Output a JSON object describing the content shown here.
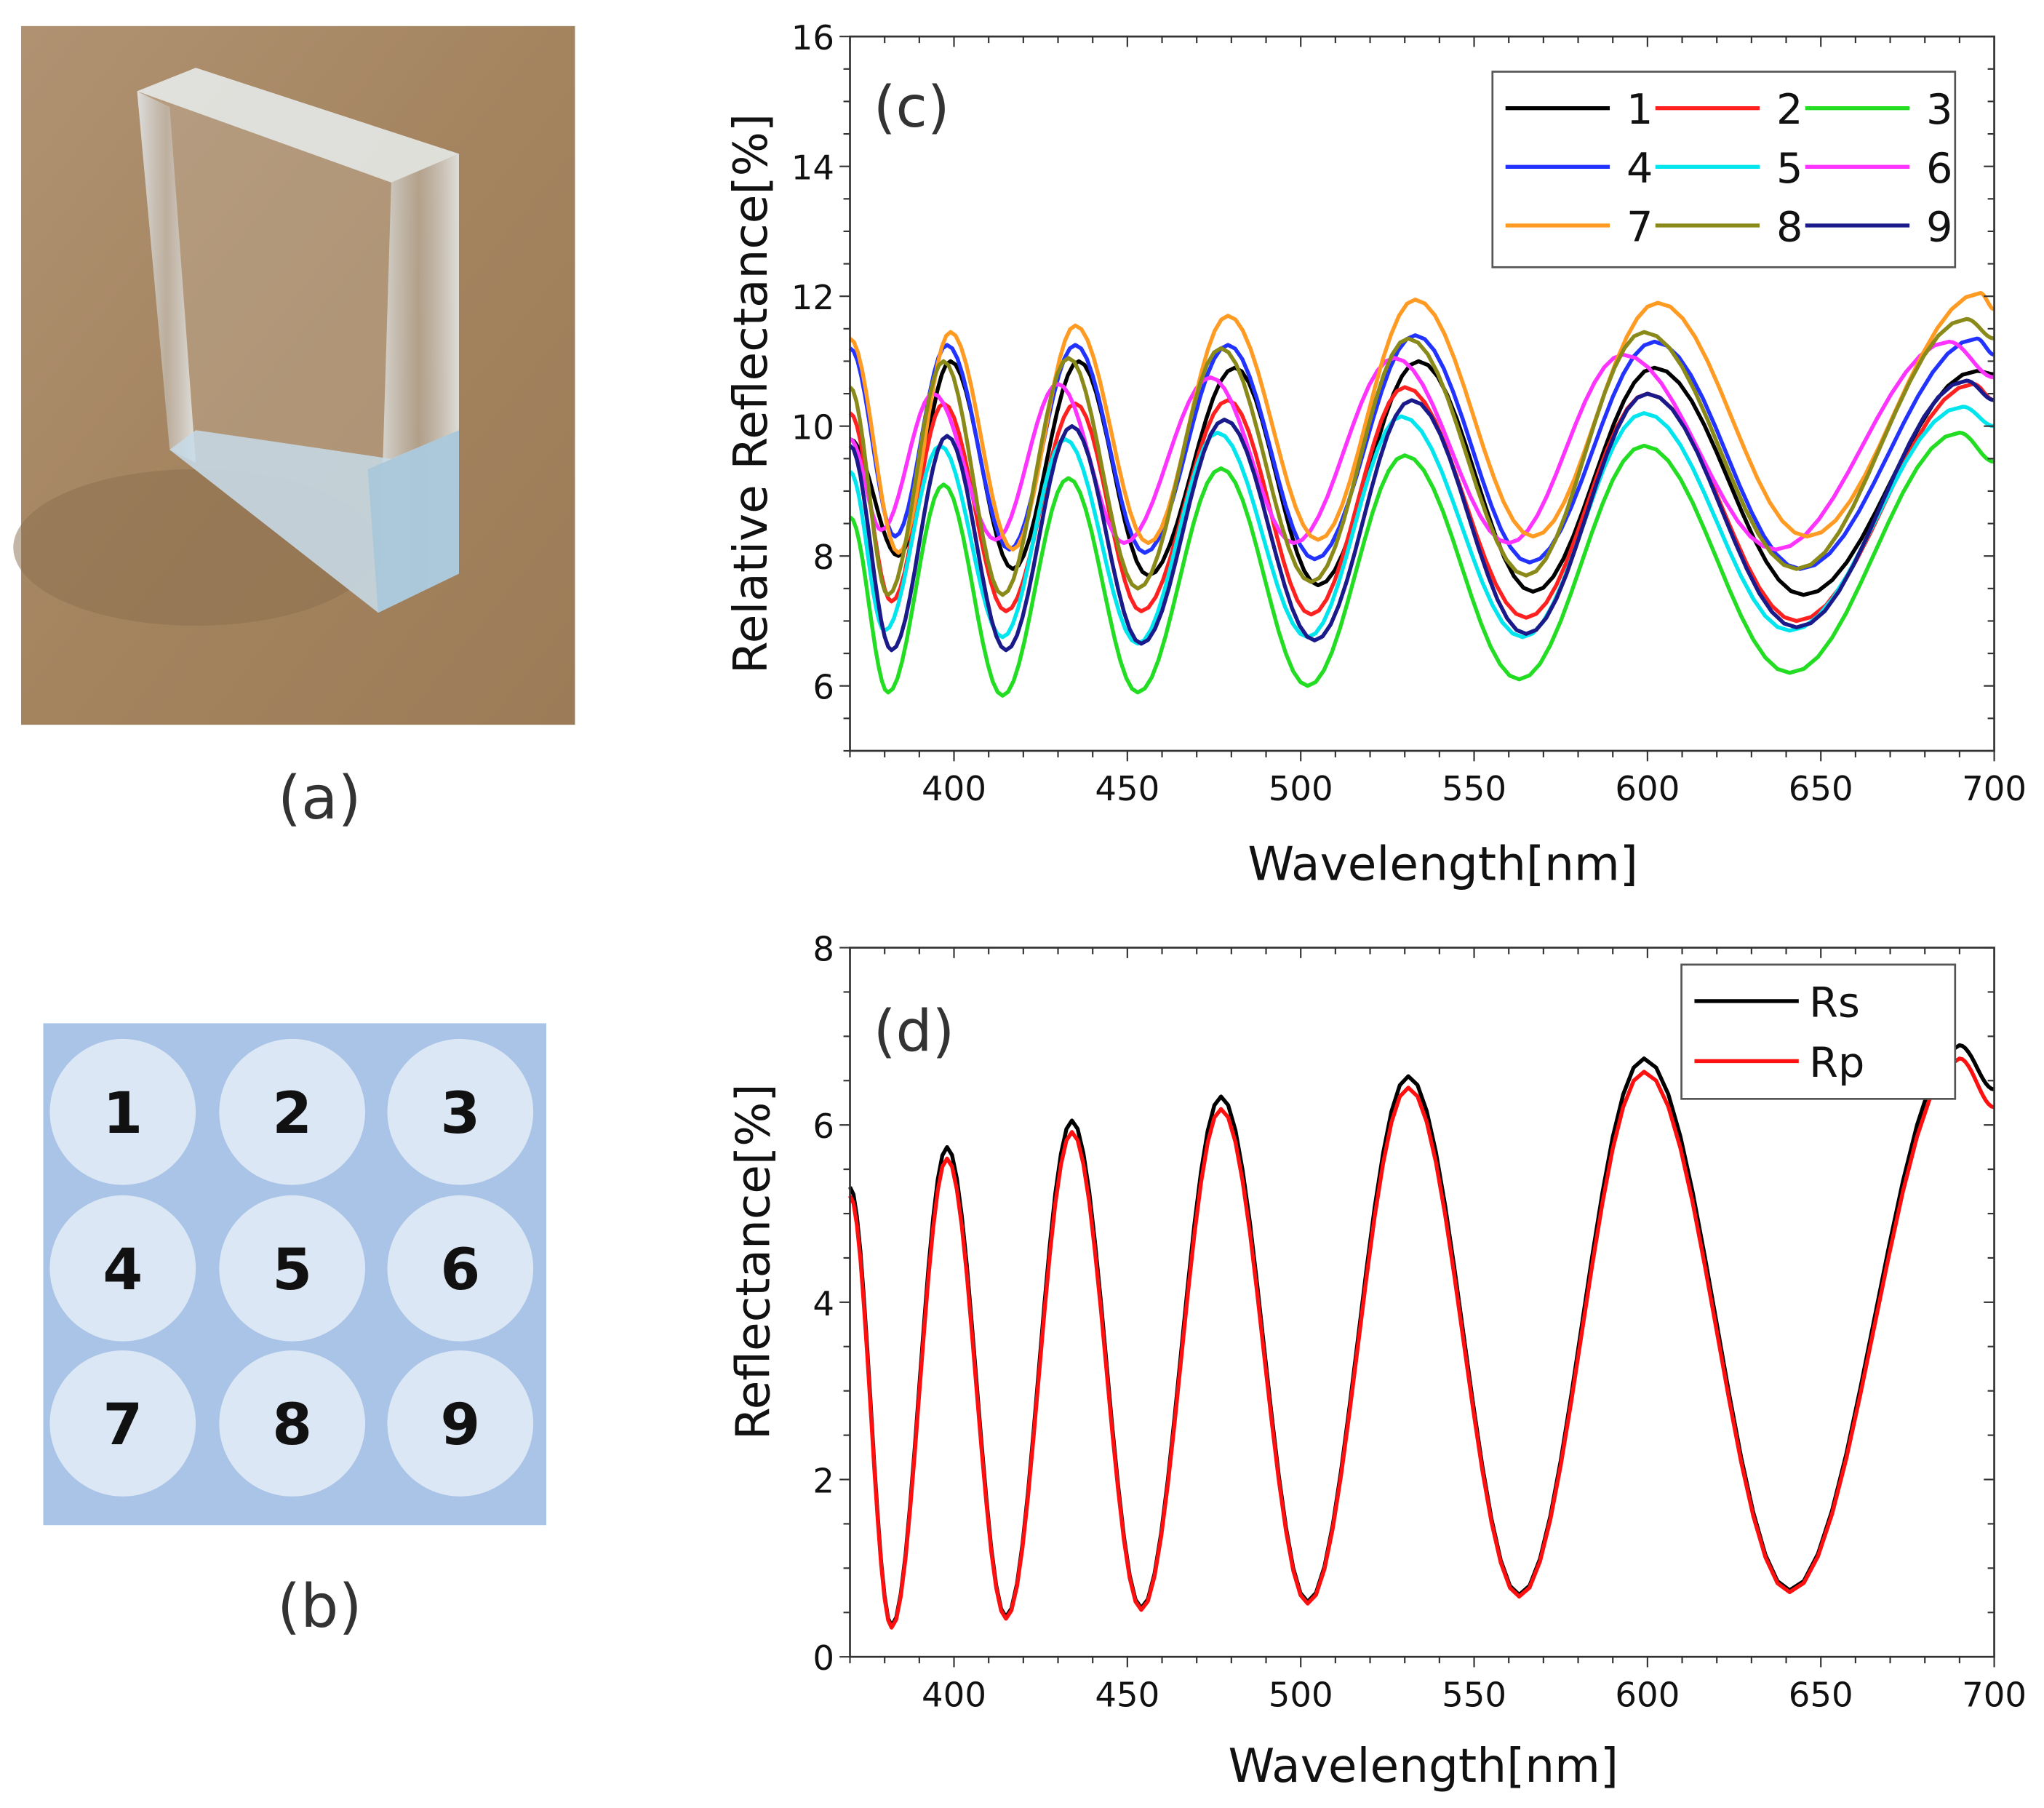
{
  "panels": {
    "a": {
      "caption": "(a)"
    },
    "b": {
      "caption": "(b)",
      "spots": [
        "1",
        "2",
        "3",
        "4",
        "5",
        "6",
        "7",
        "8",
        "9"
      ],
      "colors": {
        "background": "#a9c4e6",
        "spot": "#dce7f5"
      }
    }
  },
  "chart_data": [
    {
      "id": "c",
      "type": "line",
      "panel_label": "(c)",
      "xlabel": "Wavelength[nm]",
      "ylabel": "Relative Reflectance[%]",
      "xlim": [
        370,
        700
      ],
      "ylim": [
        5,
        16
      ],
      "xticks": [
        400,
        450,
        500,
        550,
        600,
        650,
        700
      ],
      "yticks": [
        6,
        8,
        10,
        12,
        14,
        16
      ],
      "legend_position": "top-right",
      "series": [
        {
          "name": "1",
          "color": "#000000",
          "points": [
            [
              370,
              9.8
            ],
            [
              384,
              8.0
            ],
            [
              399,
              11.0
            ],
            [
              417,
              7.8
            ],
            [
              436,
              11.0
            ],
            [
              456,
              7.7
            ],
            [
              481,
              10.9
            ],
            [
              505,
              7.55
            ],
            [
              534,
              11.0
            ],
            [
              567,
              7.45
            ],
            [
              602,
              10.9
            ],
            [
              645,
              7.4
            ],
            [
              695,
              10.85
            ],
            [
              700,
              10.8
            ]
          ]
        },
        {
          "name": "2",
          "color": "#ff2020",
          "points": [
            [
              370,
              10.2
            ],
            [
              382,
              7.3
            ],
            [
              397,
              10.35
            ],
            [
              415,
              7.15
            ],
            [
              435,
              10.35
            ],
            [
              454,
              7.15
            ],
            [
              479,
              10.4
            ],
            [
              503,
              7.1
            ],
            [
              530,
              10.6
            ],
            [
              565,
              7.05
            ],
            [
              600,
              10.5
            ],
            [
              643,
              7.0
            ],
            [
              694,
              10.65
            ],
            [
              700,
              10.4
            ]
          ]
        },
        {
          "name": "3",
          "color": "#22dd22",
          "points": [
            [
              370,
              8.6
            ],
            [
              381,
              5.9
            ],
            [
              397,
              9.1
            ],
            [
              414,
              5.85
            ],
            [
              433,
              9.2
            ],
            [
              453,
              5.9
            ],
            [
              477,
              9.35
            ],
            [
              502,
              6.0
            ],
            [
              530,
              9.55
            ],
            [
              563,
              6.1
            ],
            [
              599,
              9.7
            ],
            [
              641,
              6.2
            ],
            [
              690,
              9.9
            ],
            [
              700,
              9.45
            ]
          ]
        },
        {
          "name": "4",
          "color": "#2233ff",
          "points": [
            [
              370,
              11.2
            ],
            [
              383,
              8.3
            ],
            [
              398,
              11.25
            ],
            [
              416,
              8.1
            ],
            [
              435,
              11.25
            ],
            [
              455,
              8.05
            ],
            [
              479,
              11.25
            ],
            [
              504,
              7.95
            ],
            [
              533,
              11.4
            ],
            [
              566,
              7.9
            ],
            [
              602,
              11.3
            ],
            [
              644,
              7.8
            ],
            [
              695,
              11.35
            ],
            [
              700,
              11.1
            ]
          ]
        },
        {
          "name": "5",
          "color": "#00e5ee",
          "points": [
            [
              370,
              9.3
            ],
            [
              380,
              6.85
            ],
            [
              396,
              9.7
            ],
            [
              414,
              6.75
            ],
            [
              432,
              9.8
            ],
            [
              453,
              6.65
            ],
            [
              476,
              9.9
            ],
            [
              502,
              6.75
            ],
            [
              529,
              10.15
            ],
            [
              564,
              6.75
            ],
            [
              599,
              10.2
            ],
            [
              641,
              6.85
            ],
            [
              691,
              10.3
            ],
            [
              700,
              10.0
            ]
          ]
        },
        {
          "name": "6",
          "color": "#ff33ff",
          "points": [
            [
              370,
              9.8
            ],
            [
              379,
              8.4
            ],
            [
              394,
              10.5
            ],
            [
              412,
              8.25
            ],
            [
              430,
              10.65
            ],
            [
              449,
              8.2
            ],
            [
              474,
              10.75
            ],
            [
              498,
              8.2
            ],
            [
              527,
              11.05
            ],
            [
              560,
              8.2
            ],
            [
              593,
              11.1
            ],
            [
              637,
              8.1
            ],
            [
              687,
              11.3
            ],
            [
              700,
              10.75
            ]
          ]
        },
        {
          "name": "7",
          "color": "#ff9a22",
          "points": [
            [
              370,
              11.35
            ],
            [
              384,
              8.05
            ],
            [
              399,
              11.45
            ],
            [
              417,
              8.1
            ],
            [
              435,
              11.55
            ],
            [
              456,
              8.2
            ],
            [
              479,
              11.7
            ],
            [
              505,
              8.25
            ],
            [
              533,
              11.95
            ],
            [
              567,
              8.3
            ],
            [
              603,
              11.9
            ],
            [
              646,
              8.3
            ],
            [
              696,
              12.05
            ],
            [
              700,
              11.8
            ]
          ]
        },
        {
          "name": "8",
          "color": "#8a8a1a",
          "points": [
            [
              370,
              10.6
            ],
            [
              381,
              7.4
            ],
            [
              397,
              11.0
            ],
            [
              414,
              7.4
            ],
            [
              433,
              11.05
            ],
            [
              453,
              7.5
            ],
            [
              477,
              11.2
            ],
            [
              503,
              7.6
            ],
            [
              531,
              11.35
            ],
            [
              565,
              7.7
            ],
            [
              599,
              11.45
            ],
            [
              643,
              7.8
            ],
            [
              692,
              11.65
            ],
            [
              700,
              11.35
            ]
          ]
        },
        {
          "name": "9",
          "color": "#1a1a8a",
          "points": [
            [
              370,
              9.7
            ],
            [
              382,
              6.55
            ],
            [
              398,
              9.85
            ],
            [
              415,
              6.55
            ],
            [
              434,
              10.0
            ],
            [
              454,
              6.65
            ],
            [
              478,
              10.1
            ],
            [
              504,
              6.7
            ],
            [
              532,
              10.4
            ],
            [
              565,
              6.8
            ],
            [
              600,
              10.5
            ],
            [
              643,
              6.9
            ],
            [
              692,
              10.7
            ],
            [
              700,
              10.4
            ]
          ]
        }
      ]
    },
    {
      "id": "d",
      "type": "line",
      "panel_label": "(d)",
      "xlabel": "Wavelength[nm]",
      "ylabel": "Reflectance[%]",
      "xlim": [
        370,
        700
      ],
      "ylim": [
        0,
        8
      ],
      "xticks": [
        400,
        450,
        500,
        550,
        600,
        650,
        700
      ],
      "yticks": [
        0,
        2,
        4,
        6,
        8
      ],
      "legend_position": "top-right",
      "series": [
        {
          "name": "Rs",
          "color": "#000000",
          "points": [
            [
              370,
              5.3
            ],
            [
              382,
              0.35
            ],
            [
              398,
              5.75
            ],
            [
              415,
              0.45
            ],
            [
              434,
              6.05
            ],
            [
              454,
              0.55
            ],
            [
              477,
              6.32
            ],
            [
              502,
              0.62
            ],
            [
              531,
              6.55
            ],
            [
              563,
              0.7
            ],
            [
              599,
              6.75
            ],
            [
              641,
              0.75
            ],
            [
              690,
              6.9
            ],
            [
              700,
              6.4
            ]
          ]
        },
        {
          "name": "Rp",
          "color": "#ff1010",
          "points": [
            [
              370,
              5.2
            ],
            [
              382,
              0.33
            ],
            [
              398,
              5.62
            ],
            [
              415,
              0.43
            ],
            [
              434,
              5.92
            ],
            [
              454,
              0.53
            ],
            [
              477,
              6.18
            ],
            [
              502,
              0.6
            ],
            [
              531,
              6.42
            ],
            [
              563,
              0.68
            ],
            [
              599,
              6.6
            ],
            [
              641,
              0.73
            ],
            [
              690,
              6.75
            ],
            [
              700,
              6.2
            ]
          ]
        }
      ]
    }
  ]
}
